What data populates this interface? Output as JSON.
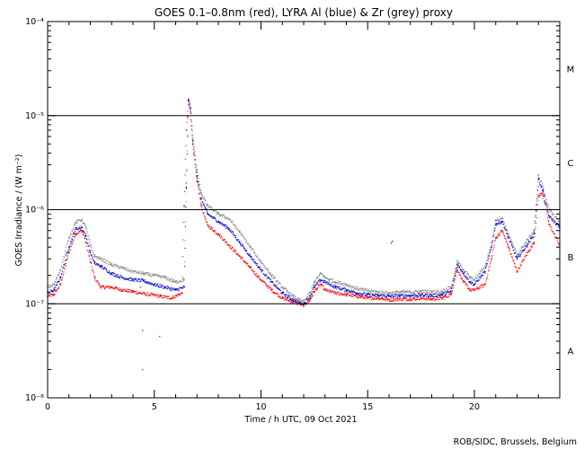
{
  "chart_data": {
    "type": "scatter",
    "title": "GOES 0.1–0.8nm (red), LYRA Al (blue) & Zr (grey) proxy",
    "xlabel": "Time / h UTC, 09 Oct 2021",
    "ylabel": "GOES Irradiance / (W m⁻²)",
    "xlim": [
      0,
      24
    ],
    "ylim": [
      1e-08,
      0.0001
    ],
    "yscale": "log",
    "x_ticks": [
      0,
      5,
      10,
      15,
      20
    ],
    "x_tick_labels": [
      "0",
      "5",
      "10",
      "15",
      "20"
    ],
    "y_ticks": [
      1e-08,
      1e-07,
      1e-06,
      1e-05,
      0.0001
    ],
    "y_tick_labels": [
      "10⁻⁸",
      "10⁻⁷",
      "10⁻⁶",
      "10⁻⁵",
      "10⁻⁴"
    ],
    "flare_class_lines": [
      1e-07,
      1e-06,
      1e-05
    ],
    "flare_classes": [
      {
        "label": "A",
        "y": 3.16e-08
      },
      {
        "label": "B",
        "y": 3.16e-07
      },
      {
        "label": "C",
        "y": 3.16e-06
      },
      {
        "label": "M",
        "y": 3.16e-05
      }
    ],
    "series": [
      {
        "name": "GOES 0.1–0.8nm",
        "color": "#ff0000",
        "x": [
          0.0,
          0.3,
          0.6,
          1.0,
          1.3,
          1.6,
          1.8,
          2.0,
          2.2,
          2.5,
          3.0,
          3.5,
          4.0,
          4.3,
          5.3,
          5.8,
          6.3,
          6.4,
          6.5,
          6.6,
          6.7,
          6.8,
          7.0,
          7.2,
          7.5,
          8.0,
          8.5,
          9.0,
          9.5,
          10.0,
          10.5,
          11.0,
          11.5,
          11.8,
          12.0,
          12.3,
          12.5,
          12.8,
          13.0,
          13.5,
          14.0,
          14.5,
          15.0,
          15.5,
          16.0,
          16.5,
          17.0,
          17.5,
          18.0,
          18.5,
          18.9,
          19.2,
          19.5,
          19.8,
          20.0,
          20.5,
          20.8,
          21.0,
          21.3,
          21.6,
          22.0,
          22.5,
          22.8,
          23.0,
          23.2,
          23.5,
          24.0
        ],
        "y": [
          1.2e-07,
          1.25e-07,
          1.6e-07,
          3.5e-07,
          5.5e-07,
          6e-07,
          4.5e-07,
          2.8e-07,
          1.9e-07,
          1.5e-07,
          1.5e-07,
          1.4e-07,
          1.35e-07,
          1.3e-07,
          1.2e-07,
          1.15e-07,
          1.3e-07,
          1.1e-06,
          7e-06,
          1.5e-05,
          1.1e-05,
          5e-06,
          2e-06,
          1.1e-06,
          6.8e-07,
          5.5e-07,
          4.2e-07,
          3.2e-07,
          2.4e-07,
          1.8e-07,
          1.4e-07,
          1.15e-07,
          1.05e-07,
          1e-07,
          9.6e-08,
          1.1e-07,
          1.35e-07,
          1.6e-07,
          1.4e-07,
          1.3e-07,
          1.25e-07,
          1.2e-07,
          1.15e-07,
          1.15e-07,
          1.1e-07,
          1.12e-07,
          1.12e-07,
          1.15e-07,
          1.12e-07,
          1.15e-07,
          1.25e-07,
          2.3e-07,
          1.7e-07,
          1.4e-07,
          1.4e-07,
          1.6e-07,
          3e-07,
          5e-07,
          6e-07,
          4e-07,
          2.2e-07,
          3.5e-07,
          4.5e-07,
          1.4e-06,
          1.5e-06,
          7e-07,
          4.2e-07
        ]
      },
      {
        "name": "LYRA Al",
        "color": "#0000cc",
        "x": [
          0.0,
          0.3,
          0.6,
          1.0,
          1.3,
          1.6,
          1.8,
          2.0,
          2.2,
          2.5,
          3.0,
          3.5,
          4.0,
          4.5,
          5.0,
          5.5,
          6.0,
          6.4,
          6.5,
          6.6,
          6.7,
          6.8,
          7.0,
          7.2,
          7.5,
          8.0,
          8.5,
          9.0,
          9.5,
          10.0,
          10.5,
          11.0,
          11.5,
          11.8,
          12.0,
          12.3,
          12.5,
          12.8,
          13.0,
          13.5,
          14.0,
          14.5,
          15.0,
          15.5,
          16.0,
          16.5,
          17.0,
          17.5,
          18.0,
          18.5,
          18.9,
          19.2,
          19.5,
          19.8,
          20.0,
          20.5,
          20.8,
          21.0,
          21.3,
          21.6,
          22.0,
          22.5,
          22.8,
          23.0,
          23.2,
          23.5,
          24.0
        ],
        "y": [
          1.3e-07,
          1.4e-07,
          1.9e-07,
          4e-07,
          6.2e-07,
          6.5e-07,
          5.2e-07,
          3.5e-07,
          2.7e-07,
          2.5e-07,
          2.1e-07,
          1.9e-07,
          1.8e-07,
          1.75e-07,
          1.6e-07,
          1.5e-07,
          1.4e-07,
          1.5e-07,
          1.7e-06,
          1.45e-05,
          1.2e-05,
          5.5e-06,
          2.3e-06,
          1.3e-06,
          9e-07,
          7.5e-07,
          6.3e-07,
          4.5e-07,
          3.2e-07,
          2.3e-07,
          1.7e-07,
          1.3e-07,
          1.1e-07,
          1.03e-07,
          1e-07,
          1.2e-07,
          1.5e-07,
          1.8e-07,
          1.7e-07,
          1.5e-07,
          1.4e-07,
          1.3e-07,
          1.25e-07,
          1.22e-07,
          1.2e-07,
          1.22e-07,
          1.22e-07,
          1.25e-07,
          1.22e-07,
          1.25e-07,
          1.35e-07,
          2.6e-07,
          2.1e-07,
          1.7e-07,
          1.6e-07,
          2.2e-07,
          4e-07,
          7e-07,
          7.5e-07,
          5e-07,
          3e-07,
          4.3e-07,
          5.5e-07,
          2.1e-06,
          1.6e-06,
          8.5e-07,
          6.5e-07
        ]
      },
      {
        "name": "LYRA Zr",
        "color": "#888888",
        "x": [
          0.0,
          0.3,
          0.6,
          1.0,
          1.3,
          1.6,
          1.8,
          2.0,
          2.2,
          2.5,
          3.0,
          3.5,
          4.0,
          4.5,
          5.0,
          5.5,
          6.0,
          6.4,
          6.5,
          6.6,
          6.7,
          6.8,
          7.0,
          7.2,
          7.5,
          8.0,
          8.5,
          9.0,
          9.5,
          10.0,
          10.5,
          11.0,
          11.5,
          11.8,
          12.0,
          12.3,
          12.5,
          12.8,
          13.0,
          13.5,
          14.0,
          14.5,
          15.0,
          15.5,
          16.0,
          16.5,
          17.0,
          17.5,
          18.0,
          18.5,
          18.9,
          19.2,
          19.5,
          19.8,
          20.0,
          20.5,
          20.8,
          21.0,
          21.3,
          21.6,
          22.0,
          22.5,
          22.8,
          23.0,
          23.2,
          23.5,
          24.0
        ],
        "y": [
          1.5e-07,
          1.6e-07,
          2.3e-07,
          5e-07,
          7.3e-07,
          7.8e-07,
          6.5e-07,
          4.2e-07,
          3.2e-07,
          3e-07,
          2.6e-07,
          2.4e-07,
          2.2e-07,
          2.1e-07,
          2e-07,
          1.9e-07,
          1.7e-07,
          1.8e-07,
          1.9e-06,
          1.3e-05,
          1.1e-05,
          5.8e-06,
          2.6e-06,
          1.5e-06,
          1.1e-06,
          9e-07,
          8e-07,
          5.8e-07,
          4e-07,
          2.8e-07,
          2e-07,
          1.5e-07,
          1.2e-07,
          1.1e-07,
          1.05e-07,
          1.3e-07,
          1.7e-07,
          2.1e-07,
          1.9e-07,
          1.7e-07,
          1.6e-07,
          1.45e-07,
          1.38e-07,
          1.33e-07,
          1.3e-07,
          1.33e-07,
          1.33e-07,
          1.36e-07,
          1.33e-07,
          1.36e-07,
          1.5e-07,
          2.8e-07,
          2.3e-07,
          1.9e-07,
          1.8e-07,
          2.5e-07,
          4.5e-07,
          7.8e-07,
          8.2e-07,
          5.5e-07,
          3.3e-07,
          4.8e-07,
          6e-07,
          2.3e-06,
          1.8e-06,
          1e-06,
          7.5e-07
        ]
      }
    ],
    "outliers": [
      {
        "x": 4.35,
        "y": 1.5e-07,
        "color": "#ff0000"
      },
      {
        "x": 4.45,
        "y": 5.2e-08,
        "color": "#ff0000"
      },
      {
        "x": 4.45,
        "y": 2e-08,
        "color": "#ff0000"
      },
      {
        "x": 5.25,
        "y": 4.5e-08,
        "color": "#ff0000"
      },
      {
        "x": 16.1,
        "y": 4.4e-07,
        "color": "#ff0000"
      },
      {
        "x": 16.15,
        "y": 4.6e-07,
        "color": "#0000cc"
      }
    ]
  },
  "footer": {
    "credit": "ROB/SIDC, Brussels, Belgium"
  }
}
